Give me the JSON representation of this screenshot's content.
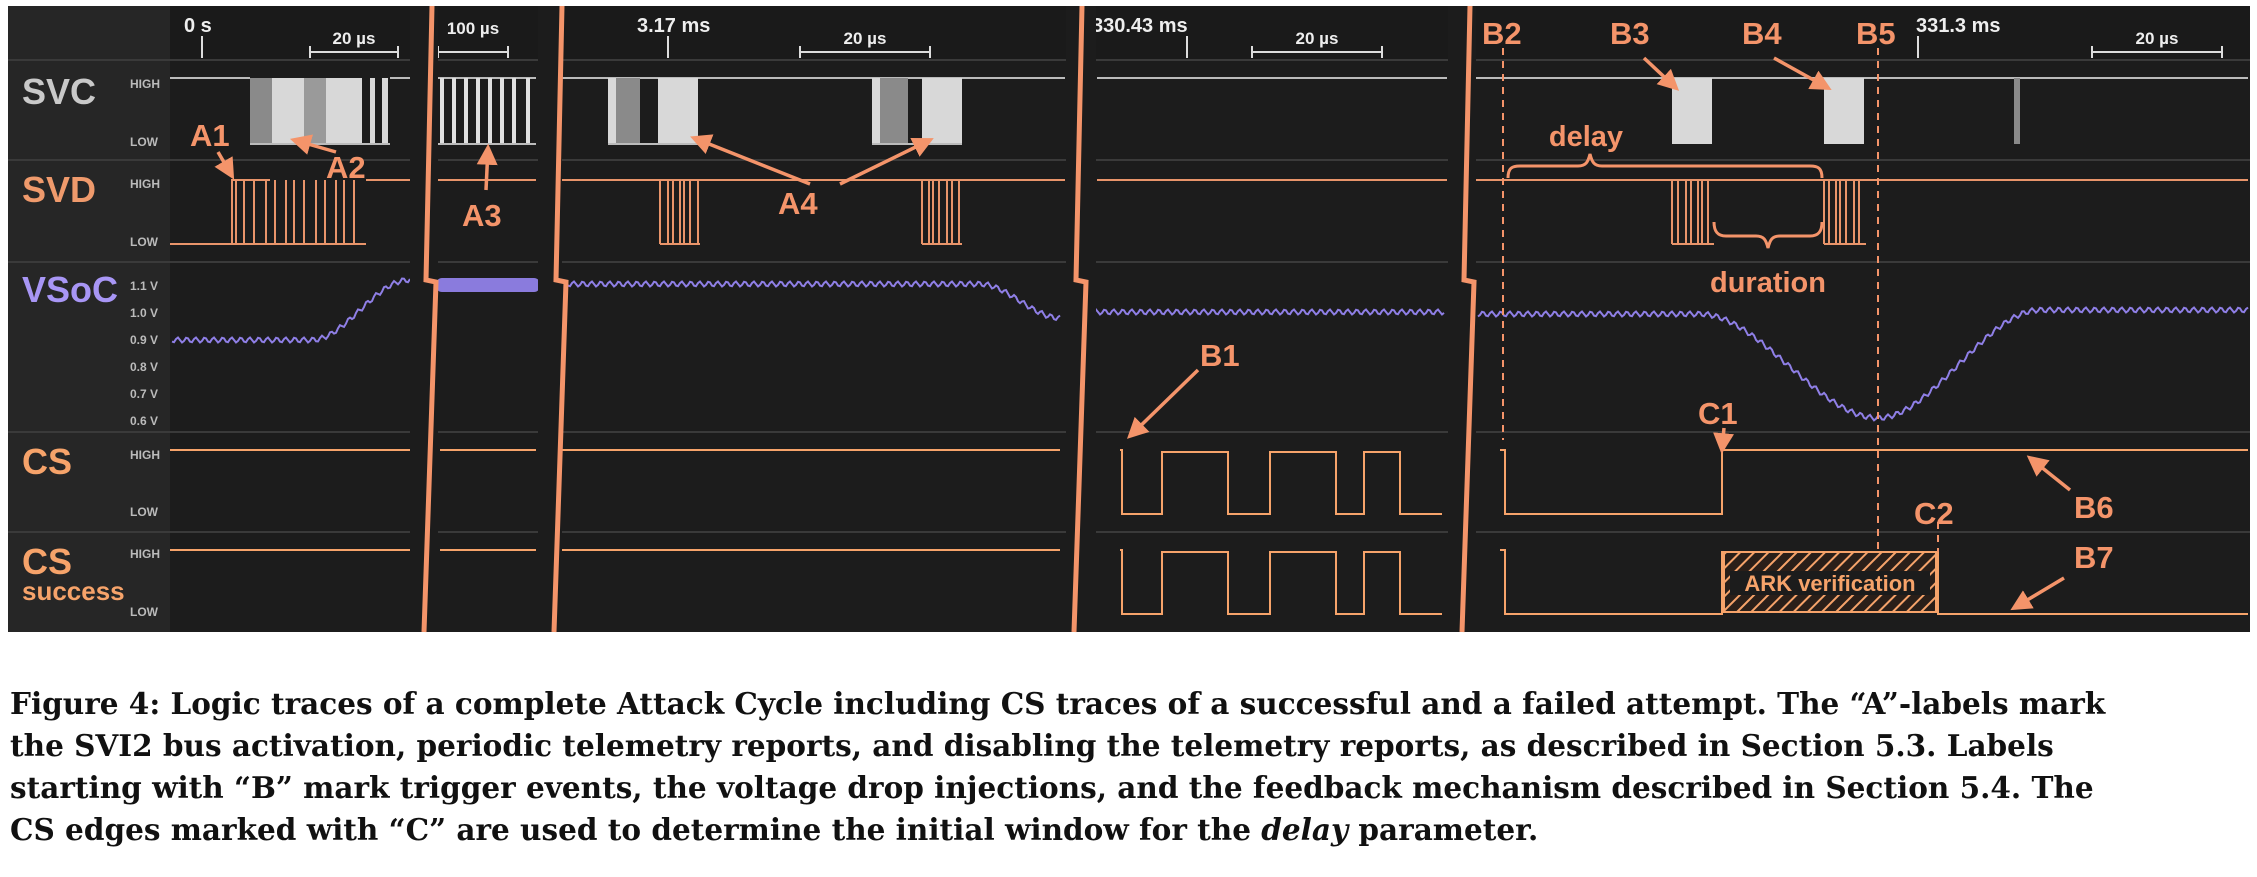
{
  "figure": {
    "channels": [
      {
        "name": "SVC",
        "color": "#c9c9c9",
        "high": "HIGH",
        "low": "LOW"
      },
      {
        "name": "SVD",
        "color": "#ef9a6c",
        "high": "HIGH",
        "low": "LOW"
      },
      {
        "name": "VSoC",
        "color": "#a896f5",
        "ticks": [
          "1.1 V",
          "1.0 V",
          "0.9 V",
          "0.8 V",
          "0.7 V",
          "0.6 V"
        ]
      },
      {
        "name": "CS",
        "color": "#f6a36a",
        "high": "HIGH",
        "low": "LOW"
      },
      {
        "name": "CS",
        "subname": "success",
        "color": "#f6a36a",
        "high": "HIGH",
        "low": "LOW"
      }
    ],
    "segments": [
      {
        "time": "0 s",
        "scale": "20 µs"
      },
      {
        "time": "",
        "scale": "100 µs"
      },
      {
        "time": "3.17 ms",
        "scale": "20 µs"
      },
      {
        "time": "330.43 ms",
        "scale": "20 µs"
      },
      {
        "time": "331.3 ms",
        "scale": "20 µs"
      }
    ],
    "labels": {
      "A1": "A1",
      "A2": "A2",
      "A3": "A3",
      "A4": "A4",
      "B1": "B1",
      "B2": "B2",
      "B3": "B3",
      "B4": "B4",
      "B5": "B5",
      "B6": "B6",
      "B7": "B7",
      "C1": "C1",
      "C2": "C2",
      "delay": "delay",
      "duration": "duration",
      "ark": "ARK verification"
    },
    "colors": {
      "background": "#1e1e1e",
      "label_panel": "#232323",
      "annotation": "#f4946a",
      "svc": "#d2d2d2",
      "svd": "#e8946a",
      "vsoc": "#8f7fe6",
      "cs": "#f6a36a"
    }
  },
  "caption": {
    "line1": "Figure 4: Logic traces of a complete Attack Cycle including CS traces of a successful and a failed attempt. The “A”-labels mark",
    "line2": "the SVI2 bus activation, periodic telemetry reports, and disabling the telemetry reports, as described in Section 5.3. Labels",
    "line3": "starting with “B” mark trigger events, the voltage drop injections, and the feedback mechanism described in Section 5.4. The",
    "line4_a": "CS edges marked with “C” are used to determine the initial window for the ",
    "line4_em": "delay",
    "line4_b": " parameter."
  }
}
